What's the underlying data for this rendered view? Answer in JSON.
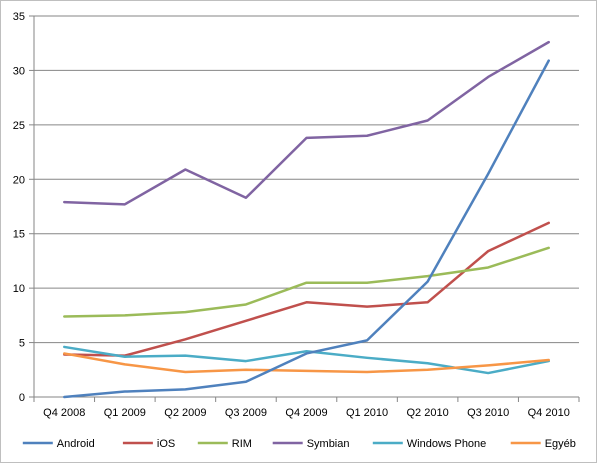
{
  "chart_data": {
    "type": "line",
    "title": "",
    "xlabel": "",
    "ylabel": "",
    "categories": [
      "Q4 2008",
      "Q1 2009",
      "Q2 2009",
      "Q3 2009",
      "Q4 2009",
      "Q1 2010",
      "Q2 2010",
      "Q3 2010",
      "Q4 2010"
    ],
    "ylim": [
      0,
      35
    ],
    "yticks": [
      0,
      5,
      10,
      15,
      20,
      25,
      30,
      35
    ],
    "grid": "horizontal",
    "legend": "bottom",
    "series": [
      {
        "name": "Android",
        "color": "#4f81bd",
        "values": [
          0,
          0.5,
          0.7,
          1.4,
          4.0,
          5.2,
          10.6,
          20.5,
          30.9
        ]
      },
      {
        "name": "iOS",
        "color": "#c0504d",
        "values": [
          3.9,
          3.8,
          5.3,
          7.0,
          8.7,
          8.3,
          8.7,
          13.4,
          16.0
        ]
      },
      {
        "name": "RIM",
        "color": "#9bbb59",
        "values": [
          7.4,
          7.5,
          7.8,
          8.5,
          10.5,
          10.5,
          11.1,
          11.9,
          13.7
        ]
      },
      {
        "name": "Symbian",
        "color": "#8064a2",
        "values": [
          17.9,
          17.7,
          20.9,
          18.3,
          23.8,
          24.0,
          25.4,
          29.4,
          32.6
        ]
      },
      {
        "name": "Windows Phone",
        "color": "#4bacc6",
        "values": [
          4.6,
          3.7,
          3.8,
          3.3,
          4.2,
          3.6,
          3.1,
          2.2,
          3.3
        ]
      },
      {
        "name": "Egyéb",
        "color": "#f79646",
        "values": [
          4.0,
          3.0,
          2.3,
          2.5,
          2.4,
          2.3,
          2.5,
          2.9,
          3.4
        ]
      }
    ]
  }
}
